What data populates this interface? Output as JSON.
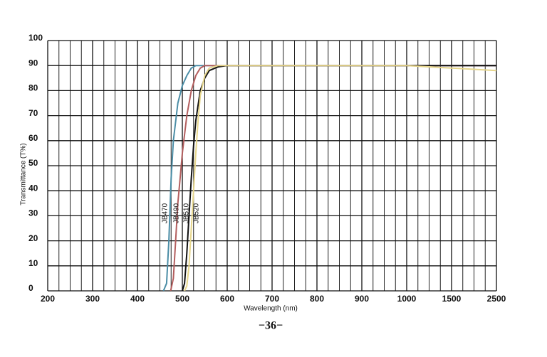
{
  "chart_data": {
    "type": "line",
    "xlabel": "Wavelength (nm)",
    "ylabel": "Transmittance (T%)",
    "page_number": "−36−",
    "xlim": [
      200,
      2500
    ],
    "xticks": [
      200,
      300,
      400,
      500,
      600,
      700,
      800,
      900,
      1000,
      1500,
      2500
    ],
    "ylim": [
      0,
      100
    ],
    "yticks": [
      0,
      10,
      20,
      30,
      40,
      50,
      60,
      70,
      80,
      90,
      100
    ],
    "grid": true,
    "series": [
      {
        "name": "JB470",
        "color": "#4b8da6",
        "x": [
          458,
          465,
          470,
          475,
          480,
          490,
          500,
          510,
          520,
          530,
          600,
          1000,
          2500
        ],
        "values": [
          0,
          3,
          20,
          45,
          60,
          75,
          82,
          86,
          89,
          90,
          90,
          90,
          90
        ]
      },
      {
        "name": "JB490",
        "color": "#b35e5e",
        "x": [
          474,
          480,
          485,
          490,
          495,
          500,
          510,
          520,
          530,
          540,
          550,
          600,
          1000,
          2500
        ],
        "values": [
          0,
          5,
          20,
          35,
          45,
          55,
          70,
          80,
          86,
          89,
          90,
          90,
          90,
          90
        ]
      },
      {
        "name": "JB510",
        "color": "#111111",
        "x": [
          500,
          505,
          510,
          515,
          520,
          525,
          530,
          540,
          550,
          560,
          580,
          600,
          1000,
          2500
        ],
        "values": [
          0,
          3,
          15,
          30,
          45,
          58,
          68,
          80,
          85,
          88,
          89.5,
          90,
          90,
          90
        ]
      },
      {
        "name": "JB520",
        "color": "#e6d68c",
        "x": [
          505,
          510,
          515,
          520,
          525,
          530,
          535,
          540,
          550,
          560,
          580,
          1000,
          1500,
          2500
        ],
        "values": [
          0,
          2,
          10,
          25,
          40,
          55,
          68,
          78,
          86,
          89,
          90,
          90,
          89,
          88
        ]
      }
    ]
  }
}
